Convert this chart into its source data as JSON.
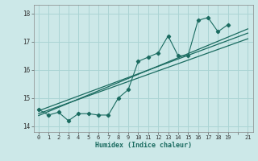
{
  "xlabel": "Humidex (Indice chaleur)",
  "ylabel": "",
  "bg_color": "#cce8e8",
  "grid_color": "#aad4d4",
  "line_color": "#1a6b60",
  "xlim": [
    -0.5,
    21.5
  ],
  "ylim": [
    13.8,
    18.3
  ],
  "xticks": [
    0,
    1,
    2,
    3,
    4,
    5,
    6,
    7,
    8,
    9,
    10,
    11,
    12,
    13,
    14,
    15,
    16,
    17,
    18,
    19,
    21
  ],
  "yticks": [
    14,
    15,
    16,
    17,
    18
  ],
  "scatter_x": [
    0,
    1,
    2,
    3,
    4,
    5,
    6,
    7,
    8,
    9,
    10,
    11,
    12,
    13,
    14,
    15,
    16,
    17,
    18,
    19
  ],
  "scatter_y": [
    14.6,
    14.4,
    14.5,
    14.2,
    14.45,
    14.45,
    14.4,
    14.4,
    15.0,
    15.3,
    16.3,
    16.45,
    16.6,
    17.2,
    16.5,
    16.5,
    17.75,
    17.85,
    17.35,
    17.6
  ],
  "line1_x": [
    0,
    21
  ],
  "line1_y": [
    14.55,
    17.3
  ],
  "line2_x": [
    0,
    21
  ],
  "line2_y": [
    14.45,
    17.1
  ],
  "line3_x": [
    0,
    21
  ],
  "line3_y": [
    14.38,
    17.45
  ]
}
